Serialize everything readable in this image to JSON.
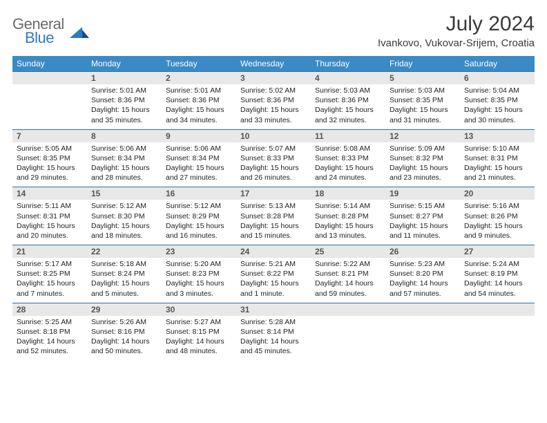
{
  "brand": {
    "top": "General",
    "bottom": "Blue"
  },
  "title": "July 2024",
  "location": "Ivankovo, Vukovar-Srijem, Croatia",
  "colors": {
    "header_bg": "#3a8ac6",
    "header_text": "#ffffff",
    "row_border": "#2f6fa5",
    "daynum_bg": "#e8e8e8",
    "text": "#222222",
    "brand_gray": "#6b6b6b",
    "brand_blue": "#2f7bbf"
  },
  "days_of_week": [
    "Sunday",
    "Monday",
    "Tuesday",
    "Wednesday",
    "Thursday",
    "Friday",
    "Saturday"
  ],
  "weeks": [
    {
      "nums": [
        "",
        "1",
        "2",
        "3",
        "4",
        "5",
        "6"
      ],
      "details": [
        "",
        "Sunrise: 5:01 AM\nSunset: 8:36 PM\nDaylight: 15 hours and 35 minutes.",
        "Sunrise: 5:01 AM\nSunset: 8:36 PM\nDaylight: 15 hours and 34 minutes.",
        "Sunrise: 5:02 AM\nSunset: 8:36 PM\nDaylight: 15 hours and 33 minutes.",
        "Sunrise: 5:03 AM\nSunset: 8:36 PM\nDaylight: 15 hours and 32 minutes.",
        "Sunrise: 5:03 AM\nSunset: 8:35 PM\nDaylight: 15 hours and 31 minutes.",
        "Sunrise: 5:04 AM\nSunset: 8:35 PM\nDaylight: 15 hours and 30 minutes."
      ]
    },
    {
      "nums": [
        "7",
        "8",
        "9",
        "10",
        "11",
        "12",
        "13"
      ],
      "details": [
        "Sunrise: 5:05 AM\nSunset: 8:35 PM\nDaylight: 15 hours and 29 minutes.",
        "Sunrise: 5:06 AM\nSunset: 8:34 PM\nDaylight: 15 hours and 28 minutes.",
        "Sunrise: 5:06 AM\nSunset: 8:34 PM\nDaylight: 15 hours and 27 minutes.",
        "Sunrise: 5:07 AM\nSunset: 8:33 PM\nDaylight: 15 hours and 26 minutes.",
        "Sunrise: 5:08 AM\nSunset: 8:33 PM\nDaylight: 15 hours and 24 minutes.",
        "Sunrise: 5:09 AM\nSunset: 8:32 PM\nDaylight: 15 hours and 23 minutes.",
        "Sunrise: 5:10 AM\nSunset: 8:31 PM\nDaylight: 15 hours and 21 minutes."
      ]
    },
    {
      "nums": [
        "14",
        "15",
        "16",
        "17",
        "18",
        "19",
        "20"
      ],
      "details": [
        "Sunrise: 5:11 AM\nSunset: 8:31 PM\nDaylight: 15 hours and 20 minutes.",
        "Sunrise: 5:12 AM\nSunset: 8:30 PM\nDaylight: 15 hours and 18 minutes.",
        "Sunrise: 5:12 AM\nSunset: 8:29 PM\nDaylight: 15 hours and 16 minutes.",
        "Sunrise: 5:13 AM\nSunset: 8:28 PM\nDaylight: 15 hours and 15 minutes.",
        "Sunrise: 5:14 AM\nSunset: 8:28 PM\nDaylight: 15 hours and 13 minutes.",
        "Sunrise: 5:15 AM\nSunset: 8:27 PM\nDaylight: 15 hours and 11 minutes.",
        "Sunrise: 5:16 AM\nSunset: 8:26 PM\nDaylight: 15 hours and 9 minutes."
      ]
    },
    {
      "nums": [
        "21",
        "22",
        "23",
        "24",
        "25",
        "26",
        "27"
      ],
      "details": [
        "Sunrise: 5:17 AM\nSunset: 8:25 PM\nDaylight: 15 hours and 7 minutes.",
        "Sunrise: 5:18 AM\nSunset: 8:24 PM\nDaylight: 15 hours and 5 minutes.",
        "Sunrise: 5:20 AM\nSunset: 8:23 PM\nDaylight: 15 hours and 3 minutes.",
        "Sunrise: 5:21 AM\nSunset: 8:22 PM\nDaylight: 15 hours and 1 minute.",
        "Sunrise: 5:22 AM\nSunset: 8:21 PM\nDaylight: 14 hours and 59 minutes.",
        "Sunrise: 5:23 AM\nSunset: 8:20 PM\nDaylight: 14 hours and 57 minutes.",
        "Sunrise: 5:24 AM\nSunset: 8:19 PM\nDaylight: 14 hours and 54 minutes."
      ]
    },
    {
      "nums": [
        "28",
        "29",
        "30",
        "31",
        "",
        "",
        ""
      ],
      "details": [
        "Sunrise: 5:25 AM\nSunset: 8:18 PM\nDaylight: 14 hours and 52 minutes.",
        "Sunrise: 5:26 AM\nSunset: 8:16 PM\nDaylight: 14 hours and 50 minutes.",
        "Sunrise: 5:27 AM\nSunset: 8:15 PM\nDaylight: 14 hours and 48 minutes.",
        "Sunrise: 5:28 AM\nSunset: 8:14 PM\nDaylight: 14 hours and 45 minutes.",
        "",
        "",
        ""
      ]
    }
  ]
}
